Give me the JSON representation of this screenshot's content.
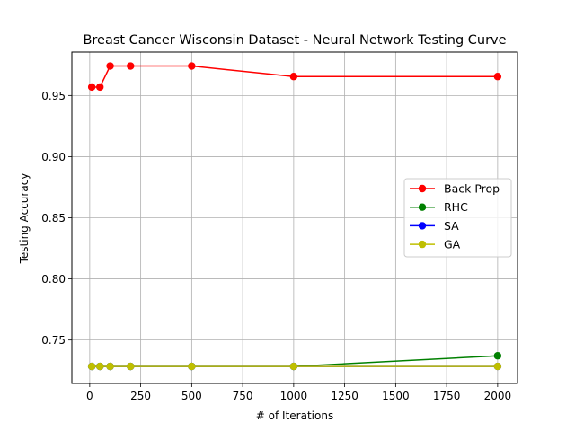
{
  "chart_data": {
    "type": "line",
    "title": "Breast Cancer Wisconsin Dataset - Neural Network Testing Curve",
    "xlabel": "# of Iterations",
    "ylabel": "Testing Accuracy",
    "x": [
      10,
      50,
      100,
      200,
      500,
      1000,
      2000
    ],
    "xlim": [
      -87.5,
      2097.5
    ],
    "ylim": [
      0.7145,
      0.9855
    ],
    "xticks": [
      0,
      250,
      500,
      750,
      1000,
      1250,
      1500,
      1750,
      2000
    ],
    "xtick_labels": [
      "0",
      "250",
      "500",
      "750",
      "1000",
      "1250",
      "1500",
      "1750",
      "2000"
    ],
    "yticks": [
      0.75,
      0.8,
      0.85,
      0.9,
      0.95
    ],
    "ytick_labels": [
      "0.75",
      "0.80",
      "0.85",
      "0.90",
      "0.95"
    ],
    "grid": true,
    "legend_position": "center-right",
    "series": [
      {
        "name": "Back Prop",
        "color": "#ff0000",
        "values": [
          0.9569,
          0.9569,
          0.9741,
          0.9741,
          0.9741,
          0.9655,
          0.9655
        ]
      },
      {
        "name": "RHC",
        "color": "#008000",
        "values": [
          0.7284,
          0.7284,
          0.7284,
          0.7284,
          0.7284,
          0.7284,
          0.7371
        ]
      },
      {
        "name": "SA",
        "color": "#0000ff",
        "values": [
          0.7284,
          0.7284,
          0.7284,
          0.7284,
          0.7284,
          0.7284,
          0.7284
        ]
      },
      {
        "name": "GA",
        "color": "#bfbf00",
        "values": [
          0.7284,
          0.7284,
          0.7284,
          0.7284,
          0.7284,
          0.7284,
          0.7284
        ]
      }
    ]
  }
}
